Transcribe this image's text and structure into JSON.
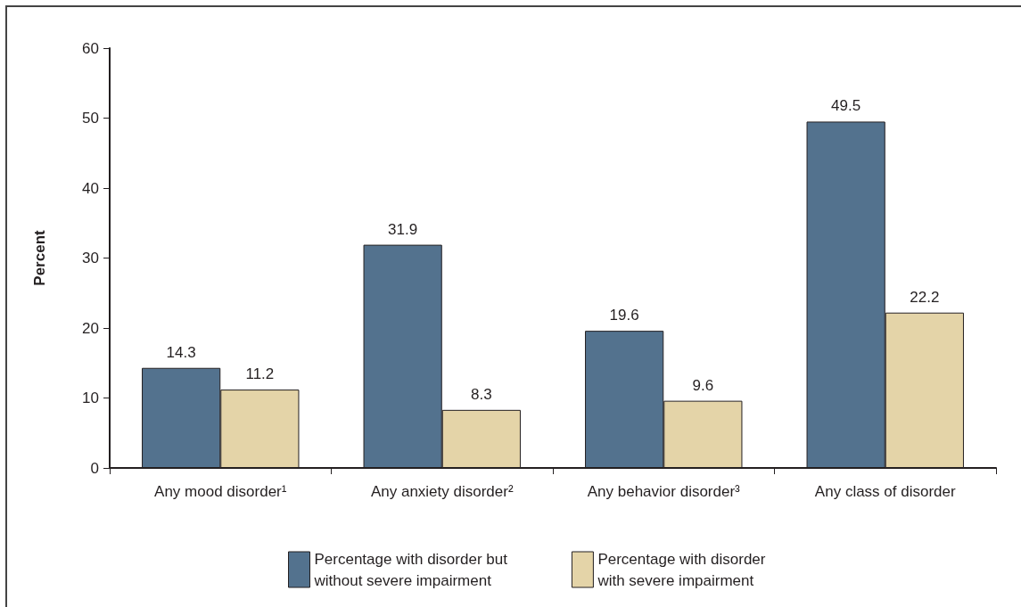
{
  "chart_data": {
    "type": "bar",
    "ylabel": "Percent",
    "categories": [
      "Any mood disorder¹",
      "Any anxiety disorder²",
      "Any behavior disorder³",
      "Any class of disorder"
    ],
    "series": [
      {
        "name": "Percentage with disorder but without severe impairment",
        "color": "#53728e",
        "values": [
          14.3,
          31.9,
          19.6,
          49.5
        ]
      },
      {
        "name": "Percentage with disorder with severe impairment",
        "color": "#e4d4a8",
        "values": [
          11.2,
          8.3,
          9.6,
          22.2
        ]
      }
    ],
    "ylim": [
      0,
      60
    ],
    "yticks": [
      0,
      10,
      20,
      30,
      40,
      50,
      60
    ],
    "grid": false,
    "legend": "bottom",
    "data_labels": true
  }
}
